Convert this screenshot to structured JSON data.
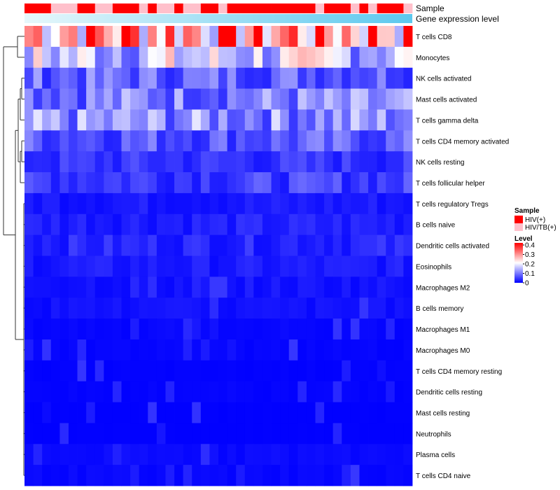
{
  "chart_data": {
    "type": "heatmap",
    "title": "",
    "annotation_rows": [
      "Sample",
      "Gene expression level"
    ],
    "rows": [
      "T cells CD8",
      "Monocytes",
      "NK cells activated",
      "Mast cells activated",
      "T cells gamma delta",
      "T cells CD4 memory activated",
      "NK cells resting",
      "T cells follicular helper",
      "T cells regulatory  Tregs",
      "B cells naive",
      "Dendritic cells activated",
      "Eosinophils",
      "Macrophages M2",
      "B cells memory",
      "Macrophages M1",
      "Macrophages M0",
      "T cells CD4 memory resting",
      "Dendritic cells resting",
      "Mast cells resting",
      "Neutrophils",
      "Plasma cells",
      "T cells CD4 naive"
    ],
    "n_samples": 44,
    "sample_groups": [
      "HIV(+)",
      "HIV(+)",
      "HIV(+)",
      "HIV/TB(+)",
      "HIV/TB(+)",
      "HIV/TB(+)",
      "HIV(+)",
      "HIV(+)",
      "HIV/TB(+)",
      "HIV/TB(+)",
      "HIV(+)",
      "HIV(+)",
      "HIV(+)",
      "HIV/TB(+)",
      "HIV(+)",
      "HIV/TB(+)",
      "HIV/TB(+)",
      "HIV(+)",
      "HIV/TB(+)",
      "HIV/TB(+)",
      "HIV(+)",
      "HIV(+)",
      "HIV/TB(+)",
      "HIV(+)",
      "HIV(+)",
      "HIV(+)",
      "HIV(+)",
      "HIV(+)",
      "HIV(+)",
      "HIV(+)",
      "HIV(+)",
      "HIV(+)",
      "HIV(+)",
      "HIV/TB(+)",
      "HIV(+)",
      "HIV(+)",
      "HIV(+)",
      "HIV/TB(+)",
      "HIV(+)",
      "HIV/TB(+)",
      "HIV(+)",
      "HIV(+)",
      "HIV(+)",
      "HIV/TB(+)"
    ],
    "row_means": [
      0.3,
      0.16,
      0.08,
      0.1,
      0.11,
      0.07,
      0.04,
      0.05,
      0.02,
      0.025,
      0.03,
      0.02,
      0.015,
      0.012,
      0.005,
      0.004,
      0.002,
      0.003,
      0.001,
      0.001,
      0.008,
      0.006
    ],
    "legends": {
      "sample": {
        "title": "Sample",
        "items": [
          {
            "label": "HIV(+)",
            "color": "#FF0000"
          },
          {
            "label": "HIV/TB(+)",
            "color": "#FFC0CB"
          }
        ]
      },
      "level": {
        "title": "Level",
        "ticks": [
          "0.4",
          "0.3",
          "0.2",
          "0.1",
          "0"
        ],
        "range": [
          0,
          0.4
        ]
      }
    },
    "colors": {
      "low": "#0000FF",
      "mid": "#FFFFFF",
      "high": "#FF0000",
      "hiv": "#FF0000",
      "hivtb": "#FFC0CB",
      "gradient_start": "#E6F7FB",
      "gradient_end": "#5CC8EE"
    }
  }
}
